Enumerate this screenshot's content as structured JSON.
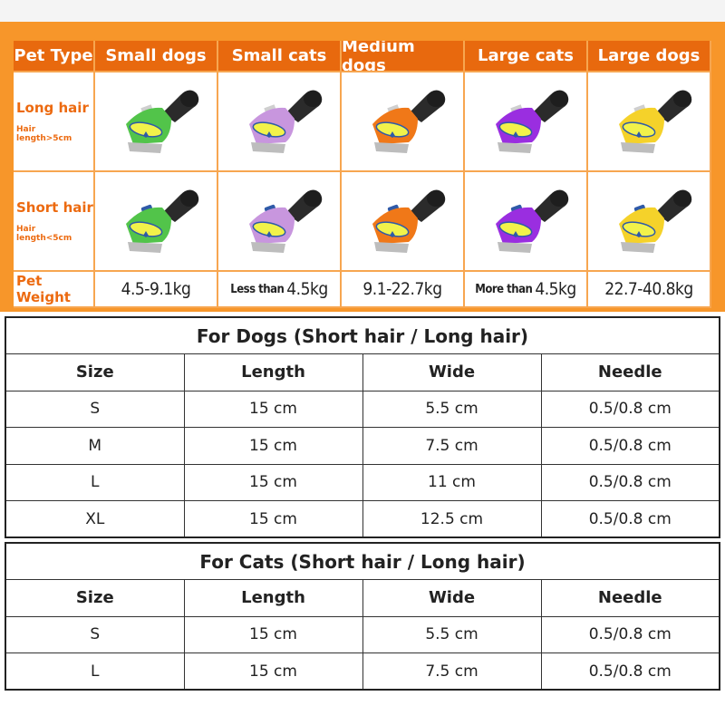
{
  "grooming_chart": {
    "header": [
      "Pet Type",
      "Small dogs",
      "Small cats",
      "Medium dogs",
      "Large cats",
      "Large dogs"
    ],
    "long_hair": {
      "label": "Long hair",
      "sub": "Hair length>5cm"
    },
    "short_hair": {
      "label": "Short hair",
      "sub": "Hair length<5cm"
    },
    "weight": {
      "label": "Pet Weight",
      "values": [
        {
          "prefix": "",
          "value": "4.5-9.1kg"
        },
        {
          "prefix": "Less than",
          "value": "4.5kg"
        },
        {
          "prefix": "",
          "value": "9.1-22.7kg"
        },
        {
          "prefix": "More than",
          "value": "4.5kg"
        },
        {
          "prefix": "",
          "value": "22.7-40.8kg"
        }
      ]
    },
    "brush_colors": [
      "#52c44a",
      "#c896de",
      "#f07818",
      "#9a2ee0",
      "#f5d22a"
    ]
  },
  "dogs_table": {
    "title": "For Dogs (Short hair / Long hair)",
    "columns": [
      "Size",
      "Length",
      "Wide",
      "Needle"
    ],
    "rows": [
      [
        "S",
        "15 cm",
        "5.5 cm",
        "0.5/0.8 cm"
      ],
      [
        "M",
        "15 cm",
        "7.5 cm",
        "0.5/0.8 cm"
      ],
      [
        "L",
        "15 cm",
        "11 cm",
        "0.5/0.8 cm"
      ],
      [
        "XL",
        "15 cm",
        "12.5 cm",
        "0.5/0.8 cm"
      ]
    ]
  },
  "cats_table": {
    "title": "For Cats (Short hair / Long hair)",
    "columns": [
      "Size",
      "Length",
      "Wide",
      "Needle"
    ],
    "rows": [
      [
        "S",
        "15 cm",
        "5.5 cm",
        "0.5/0.8 cm"
      ],
      [
        "L",
        "15 cm",
        "7.5 cm",
        "0.5/0.8 cm"
      ]
    ]
  }
}
